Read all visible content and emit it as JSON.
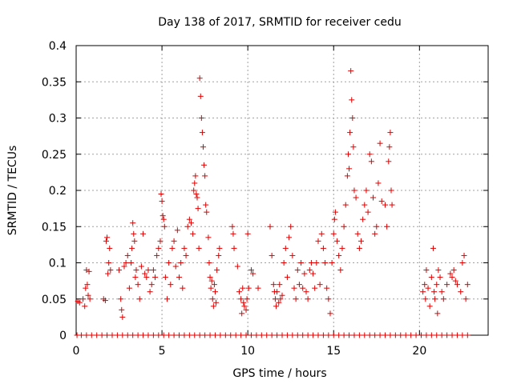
{
  "chart_data": {
    "type": "scatter",
    "title": "Day 138 of 2017, SRMTID for receiver cedu",
    "xlabel": "GPS time / hours",
    "ylabel": "SRMTID / TECUs",
    "xlim": [
      0,
      24
    ],
    "ylim": [
      0,
      0.4
    ],
    "xticks": [
      0,
      5,
      10,
      15,
      20
    ],
    "yticks": [
      0,
      0.05,
      0.1,
      0.15,
      0.2,
      0.25,
      0.3,
      0.35,
      0.4
    ],
    "xtick_labels": [
      "0",
      "5",
      "10",
      "15",
      "20"
    ],
    "ytick_labels": [
      "0",
      "0.05",
      "0.1",
      "0.15",
      "0.2",
      "0.25",
      "0.3",
      "0.35",
      "0.4"
    ],
    "grid": true,
    "marker": "+",
    "series": [
      {
        "name": "SRMTID",
        "color": "#e00000",
        "points": [
          [
            0.1,
            0.047
          ],
          [
            0.2,
            0.045
          ],
          [
            0.4,
            0.05
          ],
          [
            0.5,
            0.04
          ],
          [
            0.55,
            0.065
          ],
          [
            0.6,
            0.09
          ],
          [
            0.65,
            0.07
          ],
          [
            0.7,
            0.055
          ],
          [
            0.75,
            0.088
          ],
          [
            0.8,
            0.05
          ],
          [
            1.6,
            0.05
          ],
          [
            1.7,
            0.048
          ],
          [
            1.75,
            0.13
          ],
          [
            1.8,
            0.135
          ],
          [
            1.85,
            0.085
          ],
          [
            1.9,
            0.1
          ],
          [
            1.95,
            0.12
          ],
          [
            2.0,
            0.09
          ],
          [
            2.5,
            0.09
          ],
          [
            2.6,
            0.05
          ],
          [
            2.65,
            0.035
          ],
          [
            2.7,
            0.025
          ],
          [
            2.8,
            0.095
          ],
          [
            2.9,
            0.1
          ],
          [
            3.0,
            0.11
          ],
          [
            3.1,
            0.065
          ],
          [
            3.2,
            0.1
          ],
          [
            3.25,
            0.12
          ],
          [
            3.3,
            0.155
          ],
          [
            3.35,
            0.14
          ],
          [
            3.4,
            0.13
          ],
          [
            3.45,
            0.08
          ],
          [
            3.5,
            0.09
          ],
          [
            3.6,
            0.07
          ],
          [
            3.7,
            0.05
          ],
          [
            3.8,
            0.095
          ],
          [
            3.9,
            0.14
          ],
          [
            4.0,
            0.085
          ],
          [
            4.1,
            0.08
          ],
          [
            4.2,
            0.09
          ],
          [
            4.3,
            0.06
          ],
          [
            4.4,
            0.07
          ],
          [
            4.5,
            0.09
          ],
          [
            4.6,
            0.08
          ],
          [
            4.7,
            0.11
          ],
          [
            4.8,
            0.12
          ],
          [
            4.9,
            0.13
          ],
          [
            4.95,
            0.195
          ],
          [
            5.0,
            0.185
          ],
          [
            5.05,
            0.165
          ],
          [
            5.1,
            0.16
          ],
          [
            5.15,
            0.15
          ],
          [
            5.2,
            0.08
          ],
          [
            5.3,
            0.05
          ],
          [
            5.4,
            0.1
          ],
          [
            5.5,
            0.07
          ],
          [
            5.6,
            0.12
          ],
          [
            5.7,
            0.13
          ],
          [
            5.8,
            0.095
          ],
          [
            5.9,
            0.145
          ],
          [
            6.0,
            0.08
          ],
          [
            6.1,
            0.1
          ],
          [
            6.2,
            0.065
          ],
          [
            6.3,
            0.12
          ],
          [
            6.4,
            0.11
          ],
          [
            6.5,
            0.15
          ],
          [
            6.6,
            0.16
          ],
          [
            6.7,
            0.155
          ],
          [
            6.8,
            0.14
          ],
          [
            6.85,
            0.2
          ],
          [
            6.9,
            0.21
          ],
          [
            6.95,
            0.22
          ],
          [
            7.0,
            0.195
          ],
          [
            7.05,
            0.19
          ],
          [
            7.1,
            0.175
          ],
          [
            7.15,
            0.12
          ],
          [
            7.2,
            0.355
          ],
          [
            7.25,
            0.33
          ],
          [
            7.3,
            0.3
          ],
          [
            7.35,
            0.28
          ],
          [
            7.4,
            0.26
          ],
          [
            7.45,
            0.235
          ],
          [
            7.5,
            0.22
          ],
          [
            7.55,
            0.18
          ],
          [
            7.6,
            0.17
          ],
          [
            7.7,
            0.135
          ],
          [
            7.75,
            0.1
          ],
          [
            7.8,
            0.08
          ],
          [
            7.85,
            0.065
          ],
          [
            7.9,
            0.075
          ],
          [
            7.95,
            0.05
          ],
          [
            8.0,
            0.04
          ],
          [
            8.05,
            0.07
          ],
          [
            8.1,
            0.06
          ],
          [
            8.15,
            0.045
          ],
          [
            8.2,
            0.09
          ],
          [
            8.3,
            0.11
          ],
          [
            8.35,
            0.12
          ],
          [
            9.1,
            0.15
          ],
          [
            9.15,
            0.14
          ],
          [
            9.2,
            0.12
          ],
          [
            9.4,
            0.095
          ],
          [
            9.5,
            0.06
          ],
          [
            9.6,
            0.05
          ],
          [
            9.65,
            0.03
          ],
          [
            9.7,
            0.065
          ],
          [
            9.75,
            0.045
          ],
          [
            9.8,
            0.04
          ],
          [
            9.9,
            0.035
          ],
          [
            9.95,
            0.05
          ],
          [
            10.0,
            0.14
          ],
          [
            10.05,
            0.065
          ],
          [
            10.2,
            0.09
          ],
          [
            10.3,
            0.085
          ],
          [
            10.6,
            0.065
          ],
          [
            11.3,
            0.15
          ],
          [
            11.4,
            0.11
          ],
          [
            11.5,
            0.07
          ],
          [
            11.55,
            0.06
          ],
          [
            11.6,
            0.05
          ],
          [
            11.65,
            0.04
          ],
          [
            11.7,
            0.06
          ],
          [
            11.8,
            0.045
          ],
          [
            11.85,
            0.07
          ],
          [
            11.9,
            0.05
          ],
          [
            12.0,
            0.055
          ],
          [
            12.1,
            0.1
          ],
          [
            12.2,
            0.12
          ],
          [
            12.3,
            0.08
          ],
          [
            12.4,
            0.135
          ],
          [
            12.5,
            0.15
          ],
          [
            12.6,
            0.11
          ],
          [
            12.7,
            0.065
          ],
          [
            12.8,
            0.05
          ],
          [
            12.9,
            0.09
          ],
          [
            13.0,
            0.07
          ],
          [
            13.1,
            0.1
          ],
          [
            13.2,
            0.065
          ],
          [
            13.3,
            0.085
          ],
          [
            13.4,
            0.06
          ],
          [
            13.5,
            0.05
          ],
          [
            13.6,
            0.09
          ],
          [
            13.7,
            0.1
          ],
          [
            13.8,
            0.085
          ],
          [
            13.9,
            0.065
          ],
          [
            14.0,
            0.1
          ],
          [
            14.1,
            0.13
          ],
          [
            14.2,
            0.07
          ],
          [
            14.3,
            0.14
          ],
          [
            14.4,
            0.12
          ],
          [
            14.5,
            0.1
          ],
          [
            14.6,
            0.065
          ],
          [
            14.7,
            0.05
          ],
          [
            14.8,
            0.03
          ],
          [
            14.9,
            0.1
          ],
          [
            15.0,
            0.14
          ],
          [
            15.05,
            0.16
          ],
          [
            15.1,
            0.17
          ],
          [
            15.2,
            0.13
          ],
          [
            15.3,
            0.11
          ],
          [
            15.4,
            0.09
          ],
          [
            15.5,
            0.12
          ],
          [
            15.6,
            0.15
          ],
          [
            15.7,
            0.18
          ],
          [
            15.8,
            0.22
          ],
          [
            15.85,
            0.25
          ],
          [
            15.9,
            0.23
          ],
          [
            15.95,
            0.28
          ],
          [
            16.0,
            0.365
          ],
          [
            16.05,
            0.325
          ],
          [
            16.1,
            0.3
          ],
          [
            16.15,
            0.26
          ],
          [
            16.2,
            0.2
          ],
          [
            16.3,
            0.19
          ],
          [
            16.4,
            0.14
          ],
          [
            16.5,
            0.12
          ],
          [
            16.6,
            0.13
          ],
          [
            16.7,
            0.16
          ],
          [
            16.8,
            0.18
          ],
          [
            16.9,
            0.2
          ],
          [
            17.0,
            0.17
          ],
          [
            17.1,
            0.25
          ],
          [
            17.2,
            0.24
          ],
          [
            17.3,
            0.19
          ],
          [
            17.4,
            0.14
          ],
          [
            17.5,
            0.15
          ],
          [
            17.6,
            0.21
          ],
          [
            17.7,
            0.265
          ],
          [
            17.8,
            0.185
          ],
          [
            18.0,
            0.18
          ],
          [
            18.1,
            0.15
          ],
          [
            18.2,
            0.24
          ],
          [
            18.25,
            0.26
          ],
          [
            18.3,
            0.28
          ],
          [
            18.35,
            0.2
          ],
          [
            18.4,
            0.18
          ],
          [
            20.2,
            0.06
          ],
          [
            20.3,
            0.07
          ],
          [
            20.35,
            0.05
          ],
          [
            20.4,
            0.09
          ],
          [
            20.5,
            0.065
          ],
          [
            20.6,
            0.04
          ],
          [
            20.7,
            0.08
          ],
          [
            20.8,
            0.12
          ],
          [
            20.85,
            0.06
          ],
          [
            20.9,
            0.05
          ],
          [
            21.0,
            0.07
          ],
          [
            21.05,
            0.03
          ],
          [
            21.1,
            0.09
          ],
          [
            21.2,
            0.08
          ],
          [
            21.3,
            0.06
          ],
          [
            21.4,
            0.05
          ],
          [
            21.6,
            0.07
          ],
          [
            21.8,
            0.085
          ],
          [
            21.9,
            0.08
          ],
          [
            22.0,
            0.09
          ],
          [
            22.1,
            0.075
          ],
          [
            22.2,
            0.07
          ],
          [
            22.4,
            0.06
          ],
          [
            22.5,
            0.1
          ],
          [
            22.6,
            0.11
          ],
          [
            22.7,
            0.05
          ],
          [
            22.8,
            0.07
          ],
          [
            0.05,
            0
          ],
          [
            0.3,
            0
          ],
          [
            0.6,
            0
          ],
          [
            0.9,
            0
          ],
          [
            1.2,
            0
          ],
          [
            1.5,
            0
          ],
          [
            1.8,
            0
          ],
          [
            2.1,
            0
          ],
          [
            2.4,
            0
          ],
          [
            2.7,
            0
          ],
          [
            3.0,
            0
          ],
          [
            3.3,
            0
          ],
          [
            3.6,
            0
          ],
          [
            3.9,
            0
          ],
          [
            4.2,
            0
          ],
          [
            4.5,
            0
          ],
          [
            4.8,
            0
          ],
          [
            5.1,
            0
          ],
          [
            5.4,
            0
          ],
          [
            5.7,
            0
          ],
          [
            6.0,
            0
          ],
          [
            6.3,
            0
          ],
          [
            6.6,
            0
          ],
          [
            6.9,
            0
          ],
          [
            7.2,
            0
          ],
          [
            7.5,
            0
          ],
          [
            7.8,
            0
          ],
          [
            8.1,
            0
          ],
          [
            8.4,
            0
          ],
          [
            8.7,
            0
          ],
          [
            9.0,
            0
          ],
          [
            9.3,
            0
          ],
          [
            9.6,
            0
          ],
          [
            9.9,
            0
          ],
          [
            10.2,
            0
          ],
          [
            10.5,
            0
          ],
          [
            10.8,
            0
          ],
          [
            11.1,
            0
          ],
          [
            11.4,
            0
          ],
          [
            11.7,
            0
          ],
          [
            12.0,
            0
          ],
          [
            12.3,
            0
          ],
          [
            12.6,
            0
          ],
          [
            12.9,
            0
          ],
          [
            13.2,
            0
          ],
          [
            13.5,
            0
          ],
          [
            13.8,
            0
          ],
          [
            14.1,
            0
          ],
          [
            14.4,
            0
          ],
          [
            14.7,
            0
          ],
          [
            15.0,
            0
          ],
          [
            15.3,
            0
          ],
          [
            15.6,
            0
          ],
          [
            15.9,
            0
          ],
          [
            16.2,
            0
          ],
          [
            16.5,
            0
          ],
          [
            16.8,
            0
          ],
          [
            17.1,
            0
          ],
          [
            17.4,
            0
          ],
          [
            17.7,
            0
          ],
          [
            18.0,
            0
          ],
          [
            18.3,
            0
          ],
          [
            18.6,
            0
          ],
          [
            18.9,
            0
          ],
          [
            19.2,
            0
          ],
          [
            19.5,
            0
          ],
          [
            19.8,
            0
          ],
          [
            20.1,
            0
          ],
          [
            20.4,
            0
          ],
          [
            20.7,
            0
          ],
          [
            21.0,
            0
          ],
          [
            21.3,
            0
          ],
          [
            21.6,
            0
          ],
          [
            21.9,
            0
          ],
          [
            22.2,
            0
          ],
          [
            22.5,
            0
          ],
          [
            22.8,
            0
          ]
        ]
      }
    ]
  }
}
